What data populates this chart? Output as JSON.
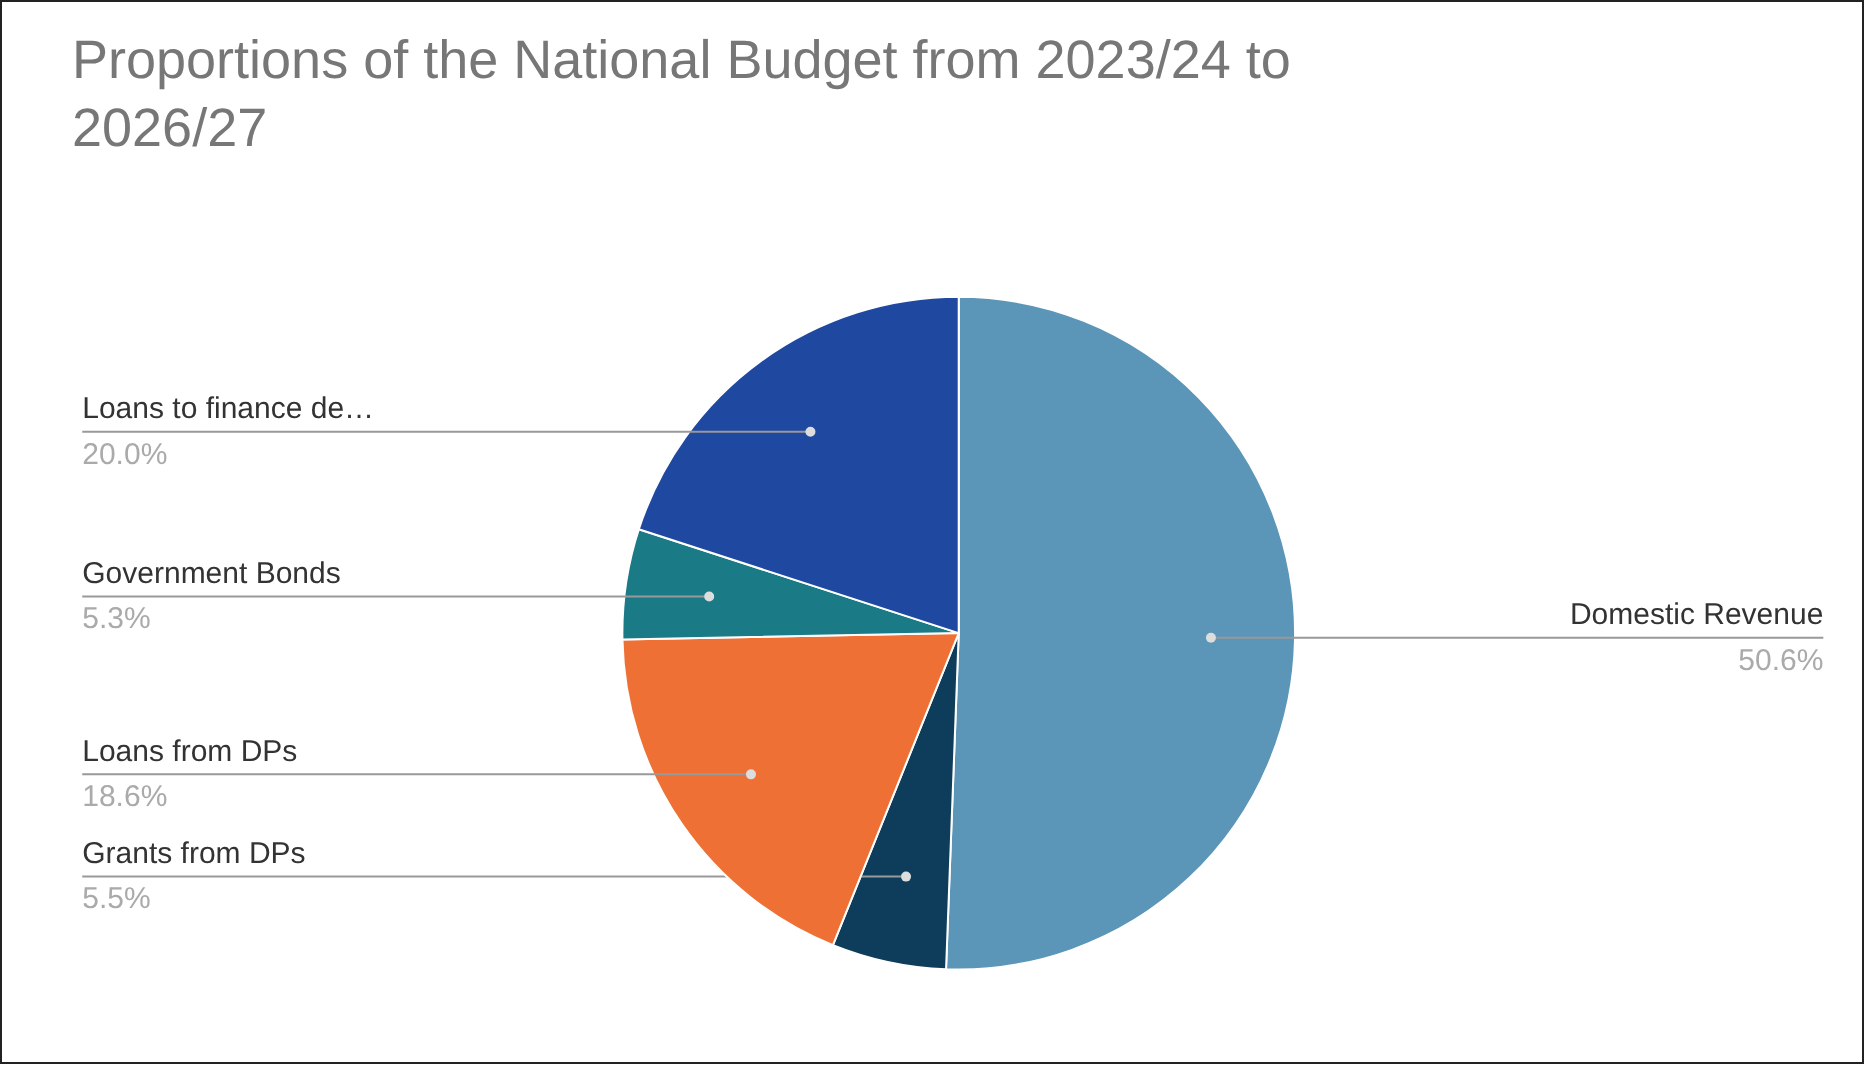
{
  "chart_data": {
    "type": "pie",
    "title": "Proportions of the National Budget from 2023/24 to 2026/27",
    "categories": [
      "Domestic Revenue",
      "Grants from DPs",
      "Loans from DPs",
      "Government Bonds",
      "Loans to finance de…"
    ],
    "values": [
      50.6,
      5.5,
      18.6,
      5.3,
      20.0
    ],
    "colors": [
      "#5b95b8",
      "#0d3d5a",
      "#ef7035",
      "#1a7a85",
      "#1f48a0"
    ],
    "value_labels": [
      "50.6%",
      "5.5%",
      "18.6%",
      "5.3%",
      "20.0%"
    ]
  }
}
